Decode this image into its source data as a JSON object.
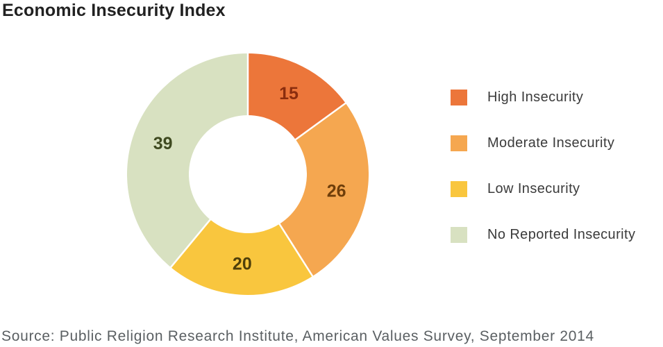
{
  "header": {
    "title": "Economic Insecurity Index"
  },
  "chart_data": {
    "type": "pie",
    "subtype": "donut",
    "title": "Economic Insecurity Index",
    "categories": [
      "High Insecurity",
      "Moderate Insecurity",
      "Low Insecurity",
      "No Reported Insecurity"
    ],
    "values": [
      15,
      26,
      20,
      39
    ],
    "data_labels": [
      "15",
      "26",
      "20",
      "39"
    ],
    "colors": [
      "#ec763a",
      "#f5a750",
      "#f9c63e",
      "#d8e1c1"
    ],
    "label_colors": [
      "#8a2d0e",
      "#6f3e0a",
      "#4f3f0a",
      "#3f4a20"
    ],
    "start_angle_deg": 0,
    "direction": "clockwise",
    "legend_position": "right",
    "separator_color": "#ffffff"
  },
  "legend": {
    "items": [
      {
        "label": "High Insecurity",
        "color": "#ec763a"
      },
      {
        "label": "Moderate Insecurity",
        "color": "#f5a750"
      },
      {
        "label": "Low Insecurity",
        "color": "#f9c63e"
      },
      {
        "label": "No Reported Insecurity",
        "color": "#d8e1c1"
      }
    ]
  },
  "footer": {
    "source": "Source: Public Religion Research Institute, American Values Survey, September 2014"
  }
}
